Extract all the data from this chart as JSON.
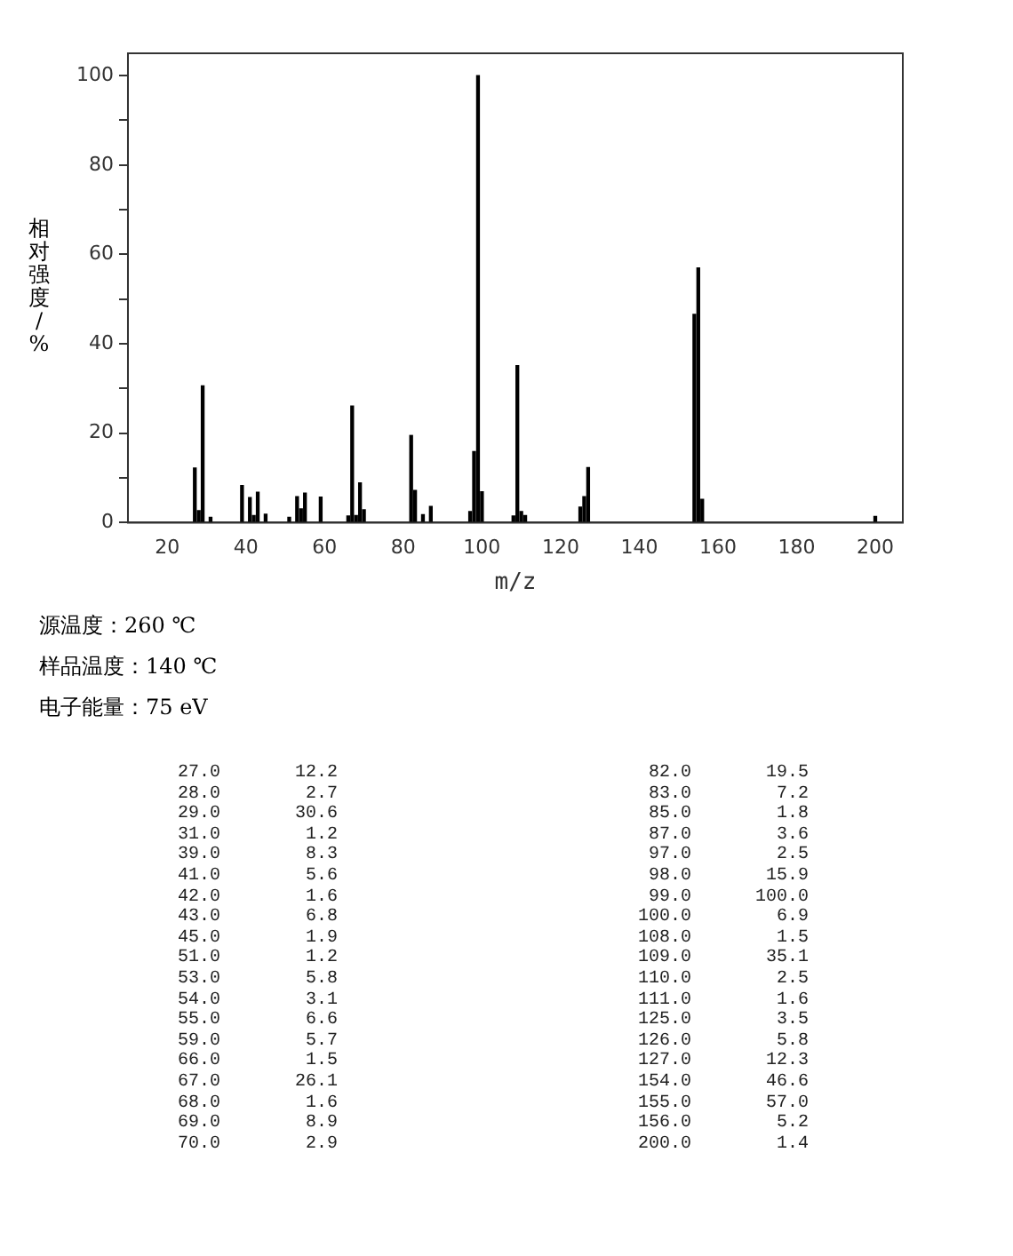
{
  "chart_data": {
    "type": "bar",
    "xlabel": "m/z",
    "ylabel": "相对强度/%",
    "x": [
      27,
      28,
      29,
      31,
      39,
      41,
      42,
      43,
      45,
      51,
      53,
      54,
      55,
      59,
      66,
      67,
      68,
      69,
      70,
      82,
      83,
      85,
      87,
      97,
      98,
      99,
      100,
      108,
      109,
      110,
      111,
      125,
      126,
      127,
      154,
      155,
      156,
      200
    ],
    "values": [
      12.2,
      2.7,
      30.6,
      1.2,
      8.3,
      5.6,
      1.6,
      6.8,
      1.9,
      1.2,
      5.8,
      3.1,
      6.6,
      5.7,
      1.5,
      26.1,
      1.6,
      8.9,
      2.9,
      19.5,
      7.2,
      1.8,
      3.6,
      2.5,
      15.9,
      100.0,
      6.9,
      1.5,
      35.1,
      2.5,
      1.6,
      3.5,
      5.8,
      12.3,
      46.6,
      57.0,
      5.2,
      1.4
    ],
    "color": "#000000",
    "xlim": [
      10,
      207
    ],
    "xticks": [
      20,
      40,
      60,
      80,
      100,
      120,
      140,
      160,
      180,
      200
    ],
    "ylim": [
      0,
      105
    ],
    "yticks": [
      0,
      {
        "value": 10,
        "label": null
      },
      20,
      {
        "value": 30,
        "label": null
      },
      40,
      {
        "value": 50,
        "label": null
      },
      60,
      {
        "value": 70,
        "label": null
      },
      80,
      {
        "value": 90,
        "label": null
      },
      100
    ],
    "grid": false,
    "legend": false,
    "annotations": [
      "源温度：260 ℃",
      "样品温度：140 ℃",
      "电子能量：75 eV",
      "27.0       12.2",
      "28.0        2.7",
      "29.0       30.6",
      "31.0        1.2",
      "39.0        8.3",
      "41.0        5.6",
      "42.0        1.6",
      "43.0        6.8",
      "45.0        1.9",
      "51.0        1.2",
      "53.0        5.8",
      "54.0        3.1",
      "55.0        6.6",
      "59.0        5.7",
      "66.0        1.5",
      "67.0       26.1",
      "68.0        1.6",
      "69.0        8.9",
      "70.0        2.9",
      "82.0       19.5",
      "83.0        7.2",
      "85.0        1.8",
      "87.0        3.6",
      "97.0        2.5",
      "98.0       15.9",
      "99.0      100.0",
      "100.0        6.9",
      "108.0        1.5",
      "109.0       35.1",
      "110.0        2.5",
      "111.0        1.6",
      "125.0        3.5",
      "126.0        5.8",
      "127.0       12.3",
      "154.0       46.6",
      "155.0       57.0",
      "156.0        5.2",
      "200.0        1.4"
    ]
  }
}
